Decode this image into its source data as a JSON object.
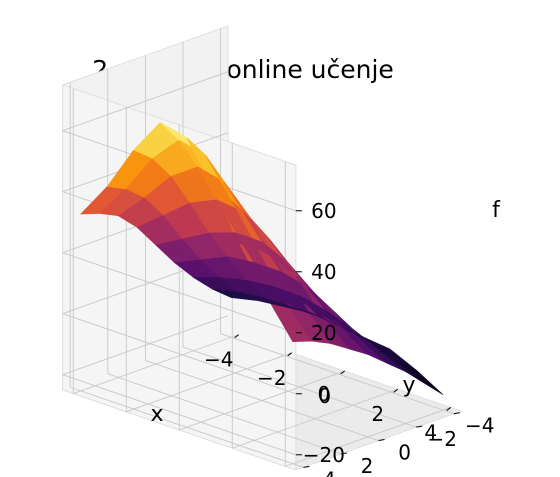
{
  "chart_data": {
    "type": "surface3d",
    "title": "2 pravila - online učenje",
    "xlabel": "x",
    "ylabel": "y",
    "zlabel": "f",
    "x": [
      -4,
      -3,
      -2,
      -1,
      0,
      1,
      2,
      3,
      4
    ],
    "y": [
      -4,
      -3,
      -2,
      -1,
      0,
      1,
      2,
      3,
      4
    ],
    "xticks": [
      "−4",
      "−2",
      "0",
      "2",
      "4"
    ],
    "yticks": [
      "−4",
      "−2",
      "0",
      "2",
      "4"
    ],
    "zticks": [
      "−20",
      "0",
      "20",
      "40",
      "60"
    ],
    "xlim": [
      -4.4,
      4.4
    ],
    "ylim": [
      -4.4,
      4.4
    ],
    "zlim": [
      -25,
      75
    ],
    "colormap": "inferno",
    "grid": true,
    "z": [
      [
        -12,
        -10,
        -9,
        -8,
        -9,
        -10,
        -11,
        -15,
        -20
      ],
      [
        -7,
        -5,
        -4,
        -4,
        -4,
        -5,
        -7,
        -10,
        -14
      ],
      [
        -1,
        2,
        4,
        5,
        5,
        3,
        0,
        -4,
        -8
      ],
      [
        6,
        10,
        14,
        15,
        15,
        13,
        8,
        2,
        -3
      ],
      [
        14,
        19,
        24,
        27,
        27,
        23,
        16,
        8,
        2
      ],
      [
        22,
        29,
        36,
        40,
        39,
        33,
        24,
        14,
        6
      ],
      [
        28,
        37,
        47,
        53,
        51,
        42,
        31,
        20,
        10
      ],
      [
        31,
        42,
        55,
        64,
        62,
        50,
        37,
        24,
        13
      ],
      [
        33,
        45,
        60,
        72,
        70,
        56,
        41,
        27,
        15
      ]
    ]
  }
}
